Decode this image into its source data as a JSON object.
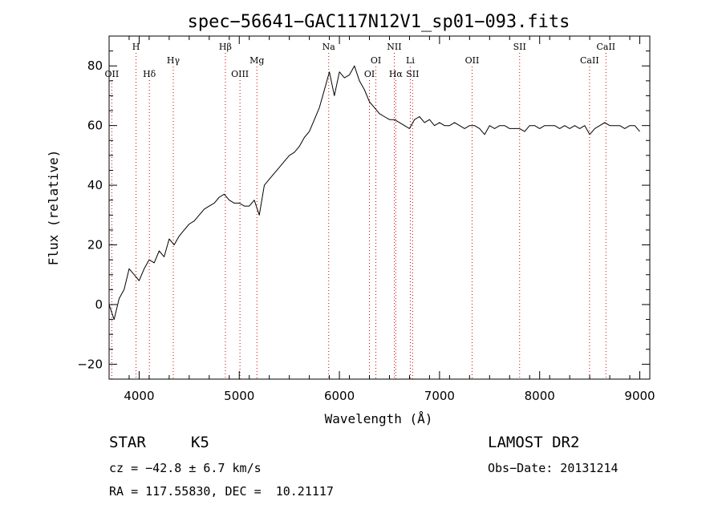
{
  "chart_data": {
    "type": "line",
    "title": "spec−56641−GAC117N12V1_sp01−093.fits",
    "xlabel": "Wavelength (Å)",
    "ylabel": "Flux (relative)",
    "xlim": [
      3700,
      9100
    ],
    "ylim": [
      -25,
      90
    ],
    "x_ticks": [
      4000,
      5000,
      6000,
      7000,
      8000,
      9000
    ],
    "y_ticks": [
      -20,
      0,
      20,
      40,
      60,
      80
    ],
    "y_tick_labels": [
      "−20",
      "0",
      "20",
      "40",
      "60",
      "80"
    ],
    "grid": false,
    "series": [
      {
        "x": [
          3700,
          3750,
          3800,
          3850,
          3900,
          3950,
          4000,
          4050,
          4100,
          4150,
          4200,
          4250,
          4300,
          4350,
          4400,
          4450,
          4500,
          4550,
          4600,
          4650,
          4700,
          4750,
          4800,
          4850,
          4900,
          4950,
          5000,
          5050,
          5100,
          5150,
          5200,
          5250,
          5300,
          5350,
          5400,
          5450,
          5500,
          5550,
          5600,
          5650,
          5700,
          5750,
          5800,
          5850,
          5900,
          5950,
          6000,
          6050,
          6100,
          6150,
          6200,
          6250,
          6300,
          6350,
          6400,
          6450,
          6500,
          6550,
          6600,
          6650,
          6700,
          6750,
          6800,
          6850,
          6900,
          6950,
          7000,
          7050,
          7100,
          7150,
          7200,
          7250,
          7300,
          7350,
          7400,
          7450,
          7500,
          7550,
          7600,
          7650,
          7700,
          7750,
          7800,
          7850,
          7900,
          7950,
          8000,
          8050,
          8100,
          8150,
          8200,
          8250,
          8300,
          8350,
          8400,
          8450,
          8500,
          8550,
          8600,
          8650,
          8700,
          8750,
          8800,
          8850,
          8900,
          8950,
          9000
        ],
        "y": [
          0,
          -5,
          2,
          5,
          12,
          10,
          8,
          12,
          15,
          14,
          18,
          16,
          22,
          20,
          23,
          25,
          27,
          28,
          30,
          32,
          33,
          34,
          36,
          37,
          35,
          34,
          34,
          33,
          33,
          35,
          30,
          40,
          42,
          44,
          46,
          48,
          50,
          51,
          53,
          56,
          58,
          62,
          66,
          72,
          78,
          70,
          78,
          76,
          77,
          80,
          75,
          72,
          68,
          66,
          64,
          63,
          62,
          62,
          61,
          60,
          59,
          62,
          63,
          61,
          62,
          60,
          61,
          60,
          60,
          61,
          60,
          59,
          60,
          60,
          59,
          57,
          60,
          59,
          60,
          60,
          59,
          59,
          59,
          58,
          60,
          60,
          59,
          60,
          60,
          60,
          59,
          60,
          59,
          60,
          59,
          60,
          57,
          59,
          60,
          61,
          60,
          60,
          60,
          59,
          60,
          60,
          58
        ]
      }
    ],
    "line_labels": [
      {
        "label": "OII",
        "x": 3727,
        "row": 3
      },
      {
        "label": "H",
        "x": 3969,
        "row": 1
      },
      {
        "label": "Hδ",
        "x": 4102,
        "row": 3
      },
      {
        "label": "Hγ",
        "x": 4341,
        "row": 2
      },
      {
        "label": "Hβ",
        "x": 4861,
        "row": 1
      },
      {
        "label": "OIII",
        "x": 5007,
        "row": 3
      },
      {
        "label": "Mg",
        "x": 5176,
        "row": 2
      },
      {
        "label": "Na",
        "x": 5893,
        "row": 1
      },
      {
        "label": "OI",
        "x": 6300,
        "row": 3
      },
      {
        "label": "OI",
        "x": 6364,
        "row": 2
      },
      {
        "label": "NII",
        "x": 6548,
        "row": 1
      },
      {
        "label": "Hα",
        "x": 6563,
        "row": 3
      },
      {
        "label": "Li",
        "x": 6708,
        "row": 2
      },
      {
        "label": "SII",
        "x": 6731,
        "row": 3
      },
      {
        "label": "OII",
        "x": 7325,
        "row": 2
      },
      {
        "label": "SII",
        "x": 7800,
        "row": 1
      },
      {
        "label": "CaII",
        "x": 8498,
        "row": 2
      },
      {
        "label": "CaII",
        "x": 8662,
        "row": 1
      }
    ]
  },
  "info": {
    "class": "STAR",
    "subclass": "K5",
    "survey": "LAMOST DR2",
    "cz": "cz = −42.8 ± 6.7 km/s",
    "obs_date": "Obs−Date: 20131214",
    "radec": "RA = 117.55830, DEC =  10.21117"
  }
}
